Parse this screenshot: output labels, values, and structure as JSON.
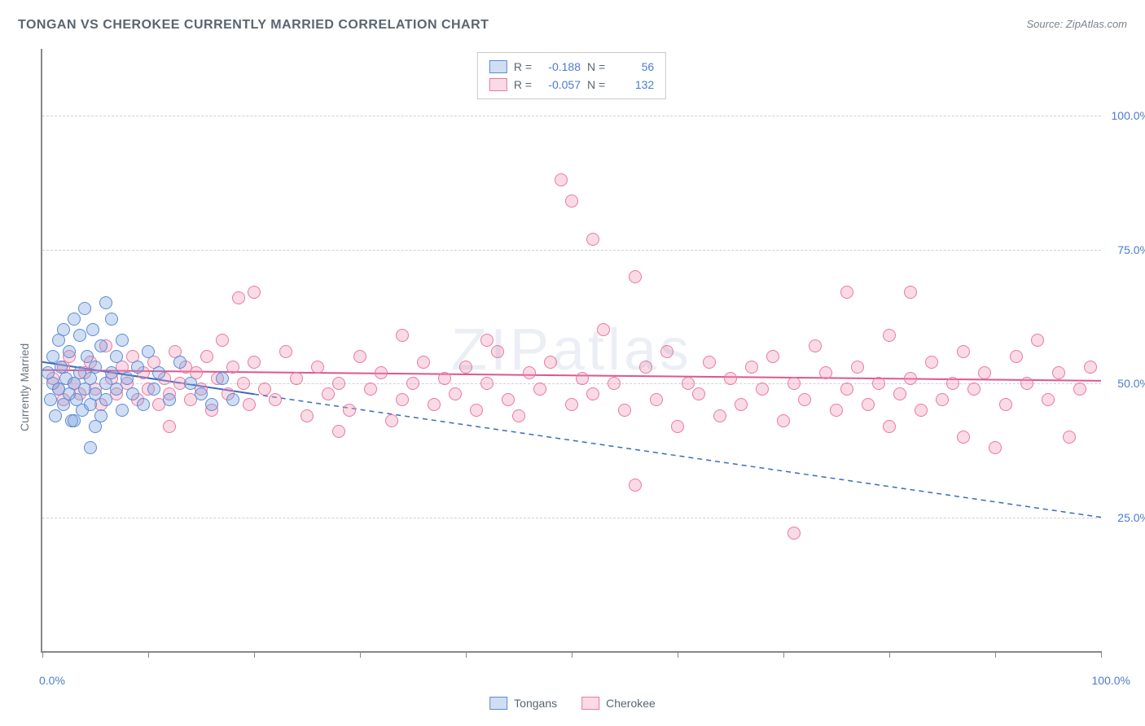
{
  "title": "TONGAN VS CHEROKEE CURRENTLY MARRIED CORRELATION CHART",
  "source": "Source: ZipAtlas.com",
  "watermark": "ZIPatlas",
  "ylabel": "Currently Married",
  "chart": {
    "type": "scatter",
    "xlim": [
      0,
      100
    ],
    "ylim": [
      0,
      112.5
    ],
    "background_color": "#ffffff",
    "grid_color": "#d0d0d0",
    "axis_color": "#888888",
    "marker_radius": 8,
    "marker_border_width": 1.5,
    "x_ticks": [
      0,
      10,
      20,
      30,
      40,
      50,
      60,
      70,
      80,
      90,
      100
    ],
    "y_gridlines": [
      {
        "v": 25,
        "label": "25.0%"
      },
      {
        "v": 50,
        "label": "50.0%"
      },
      {
        "v": 75,
        "label": "75.0%"
      },
      {
        "v": 100,
        "label": "100.0%"
      }
    ],
    "x_axis_labels": {
      "left": "0.0%",
      "right": "100.0%"
    },
    "label_color": "#4a7bd0",
    "text_color": "#5a6570"
  },
  "series": {
    "tongans": {
      "label": "Tongans",
      "fill": "rgba(120,160,220,0.35)",
      "stroke": "#5a8bd8",
      "R": "-0.188",
      "N": "56",
      "trend": {
        "x1": 0,
        "y1": 54,
        "x2_solid": 20,
        "y2_solid": 48,
        "x2": 100,
        "y2": 25,
        "color": "#3a6bc0",
        "width": 2
      },
      "points": [
        [
          0.5,
          52
        ],
        [
          0.8,
          47
        ],
        [
          1,
          50
        ],
        [
          1,
          55
        ],
        [
          1.2,
          44
        ],
        [
          1.5,
          58
        ],
        [
          1.5,
          49
        ],
        [
          1.8,
          53
        ],
        [
          2,
          46
        ],
        [
          2,
          60
        ],
        [
          2.2,
          51
        ],
        [
          2.5,
          48
        ],
        [
          2.5,
          56
        ],
        [
          2.8,
          43
        ],
        [
          3,
          62
        ],
        [
          3,
          50
        ],
        [
          3.2,
          47
        ],
        [
          3.5,
          59
        ],
        [
          3.5,
          52
        ],
        [
          3.8,
          45
        ],
        [
          4,
          64
        ],
        [
          4,
          49
        ],
        [
          4.2,
          55
        ],
        [
          4.5,
          46
        ],
        [
          4.5,
          51
        ],
        [
          4.8,
          60
        ],
        [
          5,
          48
        ],
        [
          5,
          53
        ],
        [
          5.5,
          44
        ],
        [
          5.5,
          57
        ],
        [
          6,
          50
        ],
        [
          6,
          47
        ],
        [
          6.5,
          62
        ],
        [
          6.5,
          52
        ],
        [
          7,
          49
        ],
        [
          7,
          55
        ],
        [
          7.5,
          45
        ],
        [
          7.5,
          58
        ],
        [
          8,
          51
        ],
        [
          8.5,
          48
        ],
        [
          9,
          53
        ],
        [
          9.5,
          46
        ],
        [
          10,
          56
        ],
        [
          10.5,
          49
        ],
        [
          11,
          52
        ],
        [
          12,
          47
        ],
        [
          13,
          54
        ],
        [
          14,
          50
        ],
        [
          15,
          48
        ],
        [
          16,
          46
        ],
        [
          17,
          51
        ],
        [
          18,
          47
        ],
        [
          4.5,
          38
        ],
        [
          5,
          42
        ],
        [
          3,
          43
        ],
        [
          6,
          65
        ]
      ]
    },
    "cherokee": {
      "label": "Cherokee",
      "fill": "rgba(240,150,180,0.35)",
      "stroke": "#e77aa0",
      "R": "-0.057",
      "N": "132",
      "trend": {
        "x1": 0,
        "y1": 52.5,
        "x2": 100,
        "y2": 50.5,
        "color": "#e05590",
        "width": 2
      },
      "points": [
        [
          1,
          51
        ],
        [
          1.5,
          49
        ],
        [
          2,
          53
        ],
        [
          2,
          47
        ],
        [
          2.5,
          55
        ],
        [
          3,
          50
        ],
        [
          3.5,
          48
        ],
        [
          4,
          52
        ],
        [
          4.5,
          54
        ],
        [
          5,
          49
        ],
        [
          5.5,
          46
        ],
        [
          6,
          57
        ],
        [
          6.5,
          51
        ],
        [
          7,
          48
        ],
        [
          7.5,
          53
        ],
        [
          8,
          50
        ],
        [
          8.5,
          55
        ],
        [
          9,
          47
        ],
        [
          9.5,
          52
        ],
        [
          10,
          49
        ],
        [
          10.5,
          54
        ],
        [
          11,
          46
        ],
        [
          11.5,
          51
        ],
        [
          12,
          48
        ],
        [
          12.5,
          56
        ],
        [
          13,
          50
        ],
        [
          13.5,
          53
        ],
        [
          14,
          47
        ],
        [
          14.5,
          52
        ],
        [
          15,
          49
        ],
        [
          15.5,
          55
        ],
        [
          16,
          45
        ],
        [
          16.5,
          51
        ],
        [
          17,
          58
        ],
        [
          17.5,
          48
        ],
        [
          18,
          53
        ],
        [
          18.5,
          66
        ],
        [
          19,
          50
        ],
        [
          19.5,
          46
        ],
        [
          20,
          54
        ],
        [
          21,
          49
        ],
        [
          22,
          47
        ],
        [
          23,
          56
        ],
        [
          24,
          51
        ],
        [
          25,
          44
        ],
        [
          26,
          53
        ],
        [
          27,
          48
        ],
        [
          28,
          50
        ],
        [
          29,
          45
        ],
        [
          30,
          55
        ],
        [
          31,
          49
        ],
        [
          32,
          52
        ],
        [
          33,
          43
        ],
        [
          34,
          47
        ],
        [
          35,
          50
        ],
        [
          36,
          54
        ],
        [
          37,
          46
        ],
        [
          38,
          51
        ],
        [
          39,
          48
        ],
        [
          40,
          53
        ],
        [
          41,
          45
        ],
        [
          42,
          50
        ],
        [
          43,
          56
        ],
        [
          44,
          47
        ],
        [
          45,
          44
        ],
        [
          46,
          52
        ],
        [
          47,
          49
        ],
        [
          48,
          54
        ],
        [
          49,
          88
        ],
        [
          50,
          46
        ],
        [
          50,
          84
        ],
        [
          51,
          51
        ],
        [
          52,
          77
        ],
        [
          52,
          48
        ],
        [
          53,
          60
        ],
        [
          54,
          50
        ],
        [
          55,
          45
        ],
        [
          56,
          31
        ],
        [
          56,
          70
        ],
        [
          57,
          53
        ],
        [
          58,
          47
        ],
        [
          59,
          56
        ],
        [
          60,
          42
        ],
        [
          61,
          50
        ],
        [
          62,
          48
        ],
        [
          63,
          54
        ],
        [
          64,
          44
        ],
        [
          65,
          51
        ],
        [
          66,
          46
        ],
        [
          67,
          53
        ],
        [
          68,
          49
        ],
        [
          69,
          55
        ],
        [
          70,
          43
        ],
        [
          71,
          50
        ],
        [
          72,
          47
        ],
        [
          73,
          57
        ],
        [
          74,
          52
        ],
        [
          75,
          45
        ],
        [
          76,
          67
        ],
        [
          76,
          49
        ],
        [
          77,
          53
        ],
        [
          78,
          46
        ],
        [
          79,
          50
        ],
        [
          80,
          59
        ],
        [
          80,
          42
        ],
        [
          81,
          48
        ],
        [
          82,
          67
        ],
        [
          82,
          51
        ],
        [
          83,
          45
        ],
        [
          84,
          54
        ],
        [
          85,
          47
        ],
        [
          86,
          50
        ],
        [
          87,
          40
        ],
        [
          87,
          56
        ],
        [
          88,
          49
        ],
        [
          89,
          52
        ],
        [
          90,
          38
        ],
        [
          91,
          46
        ],
        [
          92,
          55
        ],
        [
          93,
          50
        ],
        [
          94,
          58
        ],
        [
          95,
          47
        ],
        [
          96,
          52
        ],
        [
          97,
          40
        ],
        [
          98,
          49
        ],
        [
          99,
          53
        ],
        [
          71,
          22
        ],
        [
          20,
          67
        ],
        [
          34,
          59
        ],
        [
          42,
          58
        ],
        [
          12,
          42
        ],
        [
          28,
          41
        ]
      ]
    }
  },
  "legend_top": {
    "R_label": "R =",
    "N_label": "N ="
  },
  "legend_bottom": [
    "Tongans",
    "Cherokee"
  ]
}
